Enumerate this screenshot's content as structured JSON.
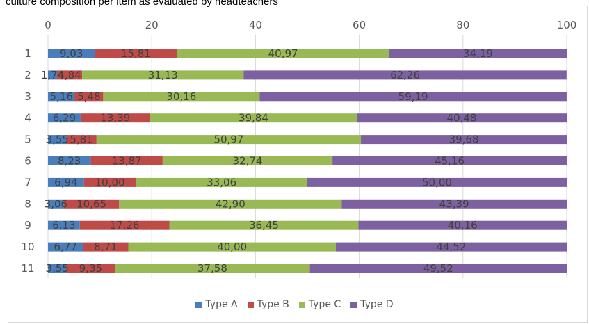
{
  "page": {
    "title": "culture composition per item as evaluated by headteachers"
  },
  "chart_data": {
    "type": "bar",
    "orientation": "horizontal",
    "stacked": true,
    "categories": [
      "1",
      "2",
      "3",
      "4",
      "5",
      "6",
      "7",
      "8",
      "9",
      "10",
      "11"
    ],
    "series": [
      {
        "name": "Type A",
        "color": "#4a7ebb",
        "values": [
          9.03,
          1.74,
          5.16,
          6.29,
          3.55,
          8.23,
          6.94,
          3.06,
          6.13,
          6.77,
          3.55
        ]
      },
      {
        "name": "Type B",
        "color": "#be4b48",
        "values": [
          15.81,
          4.84,
          5.48,
          13.39,
          5.81,
          13.87,
          10.0,
          10.65,
          17.26,
          8.71,
          9.35
        ]
      },
      {
        "name": "Type C",
        "color": "#98b954",
        "values": [
          40.97,
          31.13,
          30.16,
          39.84,
          50.97,
          32.74,
          33.06,
          42.9,
          36.45,
          40.0,
          37.58
        ]
      },
      {
        "name": "Type D",
        "color": "#7d60a0",
        "values": [
          34.19,
          62.26,
          59.19,
          40.48,
          39.68,
          45.16,
          50.0,
          43.39,
          40.16,
          44.52,
          49.52
        ]
      }
    ],
    "data_labels": [
      [
        "9,03",
        "15,81",
        "40,97",
        "34,19"
      ],
      [
        "1,74",
        "4,84",
        "31,13",
        "62,26"
      ],
      [
        "5,16",
        "5,48",
        "30,16",
        "59,19"
      ],
      [
        "6,29",
        "13,39",
        "39,84",
        "40,48"
      ],
      [
        "3,55",
        "5,81",
        "50,97",
        "39,68"
      ],
      [
        "8,23",
        "13,87",
        "32,74",
        "45,16"
      ],
      [
        "6,94",
        "10,00",
        "33,06",
        "50,00"
      ],
      [
        "3,06",
        "10,65",
        "42,90",
        "43,39"
      ],
      [
        "6,13",
        "17,26",
        "36,45",
        "40,16"
      ],
      [
        "6,77",
        "8,71",
        "40,00",
        "44,52"
      ],
      [
        "3,55",
        "9,35",
        "37,58",
        "49,52"
      ]
    ],
    "xlim": [
      0,
      100
    ],
    "x_ticks": [
      "0",
      "20",
      "40",
      "60",
      "80",
      "100"
    ],
    "gridlines": true,
    "legend_position": "bottom"
  }
}
